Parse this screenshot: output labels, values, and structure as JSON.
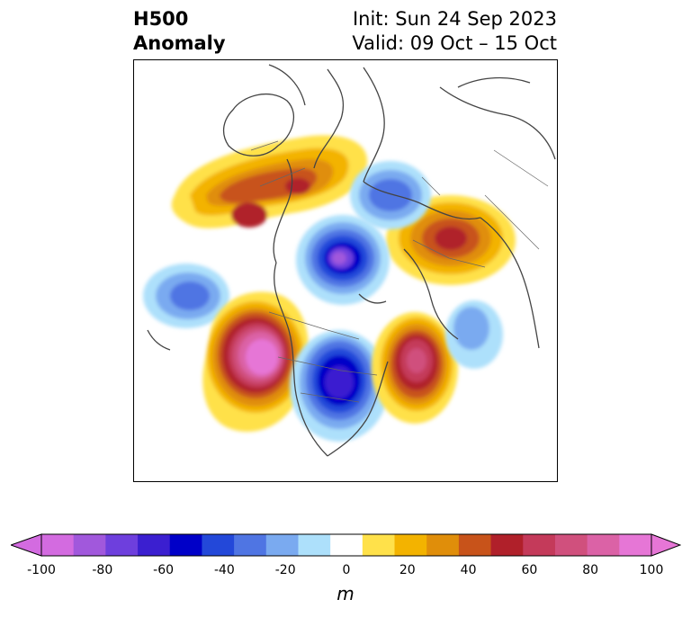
{
  "header": {
    "title_line1": "H500",
    "title_line2": "Anomaly",
    "init_text": "Init: Sun 24 Sep 2023",
    "valid_text": "Valid: 09 Oct – 15 Oct"
  },
  "colorbar": {
    "unit": "m",
    "ticks": [
      "-100",
      "-80",
      "-60",
      "-40",
      "-20",
      "0",
      "20",
      "40",
      "60",
      "80",
      "100"
    ],
    "levels": [
      -100,
      -90,
      -80,
      -70,
      -60,
      -50,
      -40,
      -30,
      -20,
      -10,
      10,
      20,
      30,
      40,
      50,
      60,
      70,
      80,
      90,
      100
    ],
    "colors": [
      "#d36be0",
      "#a158dc",
      "#6e3fdd",
      "#3b1fd0",
      "#0000c8",
      "#2348d9",
      "#4f75e3",
      "#7aaaf0",
      "#ade0fb",
      "#ffffff",
      "#ffe14a",
      "#f3b300",
      "#e08e0a",
      "#c8531a",
      "#b0202a",
      "#c43a5a",
      "#d0507d",
      "#db62a6",
      "#e676d6"
    ],
    "extend_min_color": "#d36be0",
    "extend_max_color": "#e676d6"
  },
  "map": {
    "projection": "north-polar stereographic",
    "field": "500 hPa geopotential height anomaly"
  }
}
